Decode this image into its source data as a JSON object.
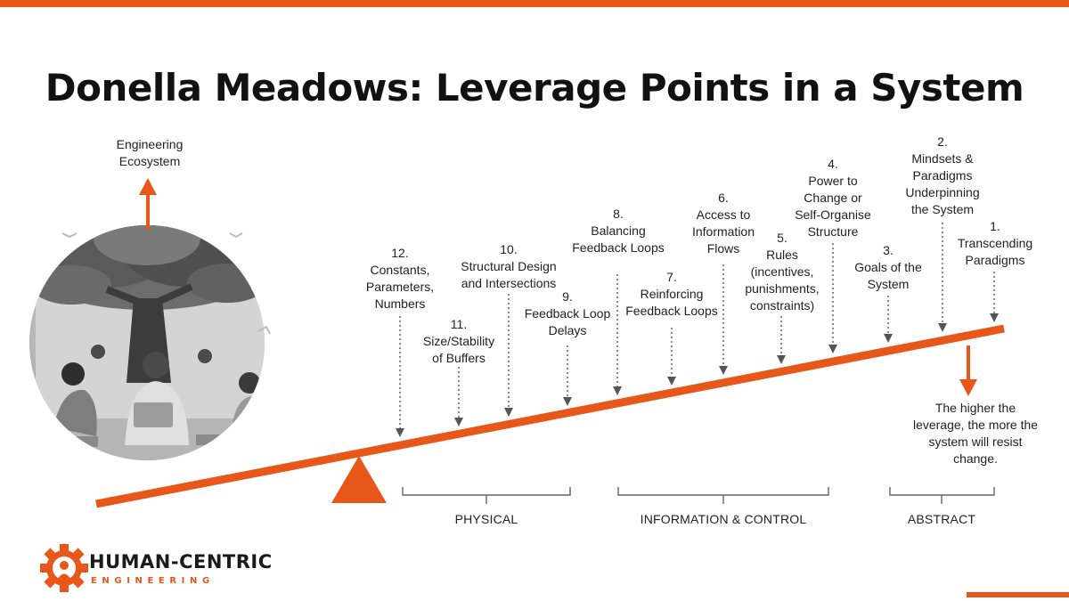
{
  "title": "Donella Meadows: Leverage Points in a System",
  "ecosystem_label": "Engineering\nEcosystem",
  "leverage_points": [
    {
      "id": "12",
      "label": "12.\nConstants,\nParameters,\nNumbers"
    },
    {
      "id": "11",
      "label": "11.\nSize/Stability\nof Buffers"
    },
    {
      "id": "10",
      "label": "10.\nStructural Design\nand Intersections"
    },
    {
      "id": "9",
      "label": "9.\nFeedback Loop\nDelays"
    },
    {
      "id": "8",
      "label": "8.\nBalancing\nFeedback Loops"
    },
    {
      "id": "7",
      "label": "7.\nReinforcing\nFeedback Loops"
    },
    {
      "id": "6",
      "label": "6.\nAccess to\nInformation\nFlows"
    },
    {
      "id": "5",
      "label": "5.\nRules\n(incentives,\npunishments,\nconstraints)"
    },
    {
      "id": "4",
      "label": "4.\nPower to\nChange or\nSelf-Organise\nStructure"
    },
    {
      "id": "3",
      "label": "3.\nGoals of the\nSystem"
    },
    {
      "id": "2",
      "label": "2.\nMindsets &\nParadigms\nUnderpinning\nthe System"
    },
    {
      "id": "1",
      "label": "1.\nTranscending\nParadigms"
    }
  ],
  "categories": [
    "PHYSICAL",
    "INFORMATION & CONTROL",
    "ABSTRACT"
  ],
  "resistance_note": "The higher the\nleverage, the more the\nsystem will resist\nchange.",
  "brand": {
    "name": "HUMAN-CENTRIC",
    "sub": "ENGINEERING"
  },
  "colors": {
    "accent": "#e8571a",
    "text": "#1e1e1e"
  }
}
